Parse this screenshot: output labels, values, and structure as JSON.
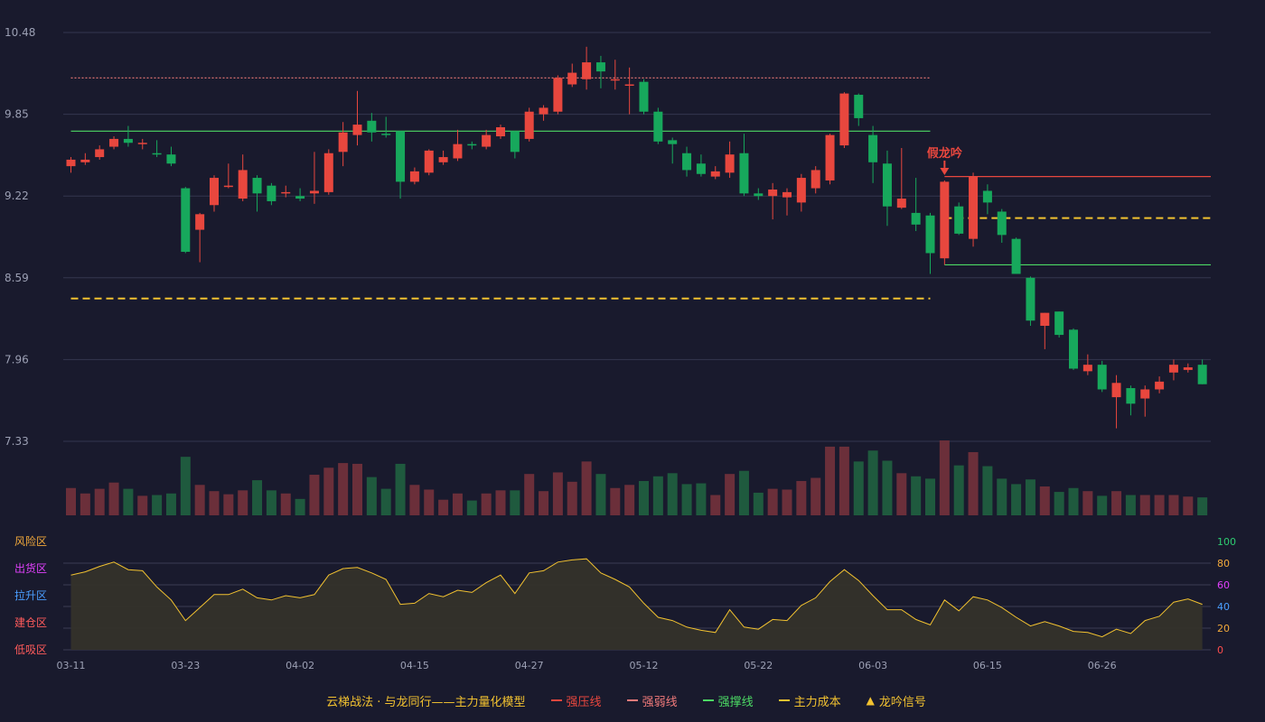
{
  "colors": {
    "up": "#e8473e",
    "down": "#17a85c",
    "strong_pressure": "#e8473e",
    "weak": "#f07a7a",
    "support": "#4cd964",
    "cost": "#f2c230",
    "model_line": "#f2c230",
    "signal": "#e8473e"
  },
  "left_zone_labels": [
    {
      "label": "风险区",
      "color": "#f2a93b"
    },
    {
      "label": "出货区",
      "color": "#e040fb"
    },
    {
      "label": "拉升区",
      "color": "#4a9eff"
    },
    {
      "label": "建仓区",
      "color": "#ff5b5b"
    },
    {
      "label": "低吸区",
      "color": "#ff5b5b"
    }
  ],
  "legend": {
    "title": "云梯战法 · 与龙同行——主力量化模型",
    "items": [
      {
        "label": "强压线",
        "color": "#e8473e",
        "style": "solid"
      },
      {
        "label": "强弱线",
        "color": "#f07a7a",
        "style": "dashed"
      },
      {
        "label": "强撑线",
        "color": "#4cd964",
        "style": "solid"
      },
      {
        "label": "主力成本",
        "color": "#f2c230",
        "style": "dashed"
      },
      {
        "label": "龙吟信号",
        "color": "#f2c230",
        "style": "triangle"
      }
    ]
  },
  "annotation": {
    "text": "假龙吟"
  },
  "chart_data": {
    "type": "candlestick",
    "price_ticks": [
      "10.48",
      "9.85",
      "9.22",
      "8.59",
      "7.96",
      "7.33"
    ],
    "price_range": [
      7.33,
      10.48
    ],
    "x_tick_labels": [
      {
        "index": 0,
        "label": "03-11"
      },
      {
        "index": 8,
        "label": "03-23"
      },
      {
        "index": 16,
        "label": "04-02"
      },
      {
        "index": 24,
        "label": "04-15"
      },
      {
        "index": 32,
        "label": "04-27"
      },
      {
        "index": 40,
        "label": "05-12"
      },
      {
        "index": 48,
        "label": "05-22"
      },
      {
        "index": 56,
        "label": "06-03"
      },
      {
        "index": 64,
        "label": "06-15"
      },
      {
        "index": 72,
        "label": "06-26"
      }
    ],
    "candles": [
      [
        9.45,
        9.5,
        9.4,
        9.52
      ],
      [
        9.48,
        9.5,
        9.46,
        9.55
      ],
      [
        9.52,
        9.58,
        9.5,
        9.61
      ],
      [
        9.6,
        9.66,
        9.58,
        9.68
      ],
      [
        9.66,
        9.63,
        9.6,
        9.76
      ],
      [
        9.63,
        9.63,
        9.58,
        9.66
      ],
      [
        9.55,
        9.54,
        9.52,
        9.65
      ],
      [
        9.54,
        9.47,
        9.45,
        9.6
      ],
      [
        9.28,
        8.79,
        8.78,
        9.29
      ],
      [
        8.96,
        9.08,
        8.71,
        9.09
      ],
      [
        9.15,
        9.36,
        9.1,
        9.38
      ],
      [
        9.3,
        9.3,
        9.28,
        9.47
      ],
      [
        9.2,
        9.42,
        9.18,
        9.54
      ],
      [
        9.36,
        9.24,
        9.1,
        9.38
      ],
      [
        9.3,
        9.18,
        9.15,
        9.32
      ],
      [
        9.25,
        9.25,
        9.21,
        9.3
      ],
      [
        9.22,
        9.2,
        9.18,
        9.28
      ],
      [
        9.24,
        9.26,
        9.16,
        9.56
      ],
      [
        9.25,
        9.55,
        9.23,
        9.58
      ],
      [
        9.56,
        9.71,
        9.45,
        9.79
      ],
      [
        9.69,
        9.77,
        9.61,
        10.03
      ],
      [
        9.8,
        9.71,
        9.64,
        9.86
      ],
      [
        9.7,
        9.69,
        9.67,
        9.83
      ],
      [
        9.72,
        9.33,
        9.2,
        9.72
      ],
      [
        9.33,
        9.41,
        9.31,
        9.44
      ],
      [
        9.4,
        9.57,
        9.38,
        9.58
      ],
      [
        9.48,
        9.52,
        9.46,
        9.57
      ],
      [
        9.51,
        9.62,
        9.49,
        9.73
      ],
      [
        9.62,
        9.61,
        9.58,
        9.64
      ],
      [
        9.6,
        9.69,
        9.58,
        9.73
      ],
      [
        9.68,
        9.75,
        9.66,
        9.77
      ],
      [
        9.72,
        9.56,
        9.51,
        9.72
      ],
      [
        9.66,
        9.87,
        9.64,
        9.9
      ],
      [
        9.85,
        9.9,
        9.8,
        9.92
      ],
      [
        9.87,
        10.13,
        9.85,
        10.15
      ],
      [
        10.08,
        10.17,
        10.06,
        10.24
      ],
      [
        10.12,
        10.25,
        10.04,
        10.37
      ],
      [
        10.25,
        10.18,
        10.05,
        10.3
      ],
      [
        10.12,
        10.12,
        10.04,
        10.27
      ],
      [
        10.07,
        10.08,
        9.85,
        10.21
      ],
      [
        10.1,
        9.87,
        9.85,
        10.12
      ],
      [
        9.87,
        9.64,
        9.62,
        9.9
      ],
      [
        9.65,
        9.62,
        9.47,
        9.67
      ],
      [
        9.55,
        9.42,
        9.37,
        9.6
      ],
      [
        9.47,
        9.39,
        9.37,
        9.54
      ],
      [
        9.37,
        9.41,
        9.35,
        9.45
      ],
      [
        9.4,
        9.54,
        9.36,
        9.64
      ],
      [
        9.55,
        9.24,
        9.22,
        9.7
      ],
      [
        9.24,
        9.22,
        9.19,
        9.28
      ],
      [
        9.22,
        9.27,
        9.04,
        9.32
      ],
      [
        9.21,
        9.25,
        9.07,
        9.28
      ],
      [
        9.17,
        9.36,
        9.1,
        9.39
      ],
      [
        9.28,
        9.42,
        9.24,
        9.45
      ],
      [
        9.34,
        9.69,
        9.31,
        9.7
      ],
      [
        9.61,
        10.01,
        9.59,
        10.02
      ],
      [
        10.0,
        9.82,
        9.76,
        10.01
      ],
      [
        9.69,
        9.48,
        9.32,
        9.76
      ],
      [
        9.47,
        9.14,
        8.99,
        9.57
      ],
      [
        9.13,
        9.2,
        9.12,
        9.59
      ],
      [
        9.09,
        9.0,
        8.95,
        9.36
      ],
      [
        9.07,
        8.78,
        8.62,
        9.09
      ],
      [
        8.74,
        9.33,
        8.69,
        9.34
      ],
      [
        9.14,
        8.93,
        8.92,
        9.17
      ],
      [
        8.89,
        9.37,
        8.83,
        9.4
      ],
      [
        9.26,
        9.17,
        9.08,
        9.31
      ],
      [
        9.1,
        8.92,
        8.86,
        9.12
      ],
      [
        8.89,
        8.62,
        8.62,
        8.9
      ],
      [
        8.59,
        8.26,
        8.22,
        8.6
      ],
      [
        8.22,
        8.32,
        8.04,
        8.32
      ],
      [
        8.33,
        8.15,
        8.13,
        8.33
      ],
      [
        8.19,
        7.89,
        7.88,
        8.2
      ],
      [
        7.87,
        7.92,
        7.84,
        8.0
      ],
      [
        7.92,
        7.73,
        7.71,
        7.95
      ],
      [
        7.67,
        7.78,
        7.43,
        7.84
      ],
      [
        7.74,
        7.62,
        7.53,
        7.76
      ],
      [
        7.66,
        7.73,
        7.52,
        7.76
      ],
      [
        7.73,
        7.79,
        7.7,
        7.83
      ],
      [
        7.86,
        7.92,
        7.8,
        7.96
      ],
      [
        7.88,
        7.9,
        7.86,
        7.93
      ],
      [
        7.92,
        7.77,
        7.77,
        7.96
      ]
    ],
    "volume": [
      0.35,
      0.28,
      0.34,
      0.42,
      0.34,
      0.25,
      0.26,
      0.28,
      0.75,
      0.39,
      0.31,
      0.27,
      0.32,
      0.45,
      0.32,
      0.28,
      0.21,
      0.52,
      0.61,
      0.67,
      0.66,
      0.49,
      0.34,
      0.66,
      0.39,
      0.33,
      0.2,
      0.28,
      0.19,
      0.28,
      0.32,
      0.32,
      0.53,
      0.31,
      0.55,
      0.43,
      0.69,
      0.53,
      0.35,
      0.39,
      0.44,
      0.5,
      0.54,
      0.4,
      0.41,
      0.26,
      0.53,
      0.57,
      0.29,
      0.34,
      0.33,
      0.44,
      0.48,
      0.88,
      0.88,
      0.69,
      0.83,
      0.7,
      0.54,
      0.5,
      0.47,
      0.96,
      0.64,
      0.81,
      0.63,
      0.47,
      0.4,
      0.46,
      0.37,
      0.3,
      0.35,
      0.31,
      0.25,
      0.31,
      0.26,
      0.26,
      0.26,
      0.26,
      0.24,
      0.23
    ],
    "oscillator": [
      69,
      72,
      77,
      81,
      74,
      73,
      58,
      46,
      27,
      39,
      51,
      51,
      56,
      48,
      46,
      50,
      48,
      51,
      69,
      75,
      76,
      71,
      65,
      42,
      43,
      52,
      49,
      55,
      53,
      62,
      69,
      52,
      71,
      73,
      81,
      83,
      84,
      71,
      65,
      58,
      43,
      30,
      27,
      21,
      18,
      16,
      37,
      21,
      19,
      28,
      27,
      41,
      48,
      63,
      74,
      64,
      50,
      37,
      37,
      28,
      23,
      46,
      36,
      49,
      46,
      39,
      30,
      22,
      26,
      22,
      17,
      16,
      12,
      19,
      15,
      27,
      31,
      44,
      47,
      42
    ],
    "osc_axis_ticks": [
      {
        "value": 100,
        "label": "100",
        "color": "#2ecc71"
      },
      {
        "value": 80,
        "label": "80",
        "color": "#f2a93b"
      },
      {
        "value": 60,
        "label": "60",
        "color": "#e040fb"
      },
      {
        "value": 40,
        "label": "40",
        "color": "#4a9eff"
      },
      {
        "value": 20,
        "label": "20",
        "color": "#f2a93b"
      },
      {
        "value": 0,
        "label": "0",
        "color": "#ff4d4d"
      }
    ],
    "reference_lines": [
      {
        "name": "强弱线",
        "value": 10.13,
        "from": 0,
        "to": 60,
        "style": "dotted",
        "color": "#f07a7a"
      },
      {
        "name": "强撑线",
        "value": 9.72,
        "from": 0,
        "to": 60,
        "style": "solid",
        "color": "#4cd964"
      },
      {
        "name": "主力成本",
        "value": 8.43,
        "from": 0,
        "to": 60,
        "style": "dashed",
        "color": "#f2c230"
      },
      {
        "name": "强压线",
        "value": 9.37,
        "from": 61,
        "to": 79,
        "style": "solid",
        "color": "#e8473e"
      },
      {
        "name": "主力成本",
        "value": 9.05,
        "from": 61,
        "to": 79,
        "style": "dashed",
        "color": "#f2c230"
      },
      {
        "name": "强撑线",
        "value": 8.69,
        "from": 61,
        "to": 79,
        "style": "solid",
        "color": "#4cd964"
      }
    ],
    "signal_index": 61
  }
}
